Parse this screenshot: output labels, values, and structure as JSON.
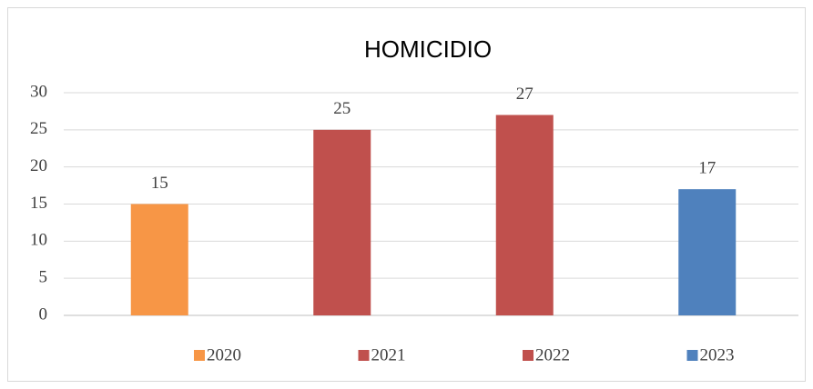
{
  "chart_data": {
    "type": "bar",
    "title": "HOMICIDIO",
    "categories": [
      "2020",
      "2021",
      "2022",
      "2023"
    ],
    "values": [
      15,
      25,
      27,
      17
    ],
    "colors": [
      "#f79646",
      "#c0504d",
      "#c0504d",
      "#4f81bd"
    ],
    "ylim": [
      0,
      30
    ],
    "yticks": [
      0,
      5,
      10,
      15,
      20,
      25,
      30
    ],
    "grid": true,
    "legend": "bottom"
  }
}
